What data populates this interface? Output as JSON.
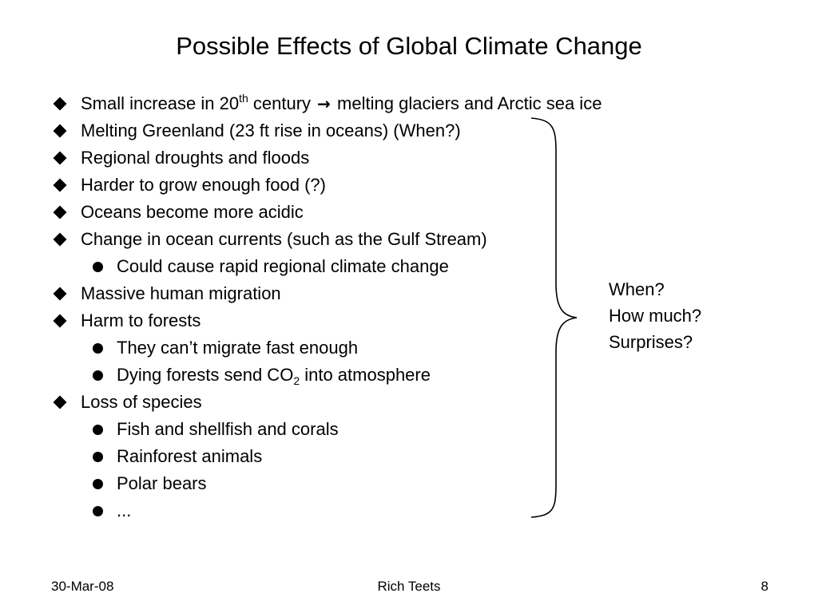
{
  "slide": {
    "title": "Possible Effects of Global Climate Change",
    "items": [
      {
        "level": 1,
        "parts": [
          {
            "t": "Small increase in 20"
          },
          {
            "t": "th",
            "sup": true
          },
          {
            "t": " century "
          },
          {
            "t": "→",
            "arrow": true
          },
          {
            "t": " melting glaciers and Arctic sea ice"
          }
        ]
      },
      {
        "level": 1,
        "parts": [
          {
            "t": "Melting Greenland (23 ft rise in oceans)  (When?)"
          }
        ]
      },
      {
        "level": 1,
        "parts": [
          {
            "t": "Regional droughts and floods"
          }
        ]
      },
      {
        "level": 1,
        "parts": [
          {
            "t": "Harder to grow enough food (?)"
          }
        ]
      },
      {
        "level": 1,
        "parts": [
          {
            "t": "Oceans become more acidic"
          }
        ]
      },
      {
        "level": 1,
        "parts": [
          {
            "t": "Change in ocean currents (such as the Gulf Stream)"
          }
        ]
      },
      {
        "level": 2,
        "parts": [
          {
            "t": "Could cause rapid regional climate change"
          }
        ]
      },
      {
        "level": 1,
        "parts": [
          {
            "t": "Massive human migration"
          }
        ]
      },
      {
        "level": 1,
        "parts": [
          {
            "t": "Harm to forests"
          }
        ]
      },
      {
        "level": 2,
        "parts": [
          {
            "t": "They can’t migrate fast enough"
          }
        ]
      },
      {
        "level": 2,
        "parts": [
          {
            "t": "Dying forests send CO"
          },
          {
            "t": "2",
            "sub": true
          },
          {
            "t": " into atmosphere"
          }
        ]
      },
      {
        "level": 1,
        "parts": [
          {
            "t": "Loss of species"
          }
        ]
      },
      {
        "level": 2,
        "parts": [
          {
            "t": "Fish and shellfish and corals"
          }
        ]
      },
      {
        "level": 2,
        "parts": [
          {
            "t": "Rainforest animals"
          }
        ]
      },
      {
        "level": 2,
        "parts": [
          {
            "t": "Polar bears"
          }
        ]
      },
      {
        "level": 2,
        "parts": [
          {
            "t": "..."
          }
        ]
      }
    ],
    "side_notes": {
      "line1": "When?",
      "line2": "How much?",
      "line3": "Surprises?"
    },
    "icons": {
      "level1": "diamond-bullet-icon",
      "level2": "dot-bullet-icon",
      "arrow": "right-arrow-icon",
      "brace": "right-curly-brace-icon"
    }
  },
  "footer": {
    "date": "30-Mar-08",
    "author": "Rich Teets",
    "page": "8"
  }
}
